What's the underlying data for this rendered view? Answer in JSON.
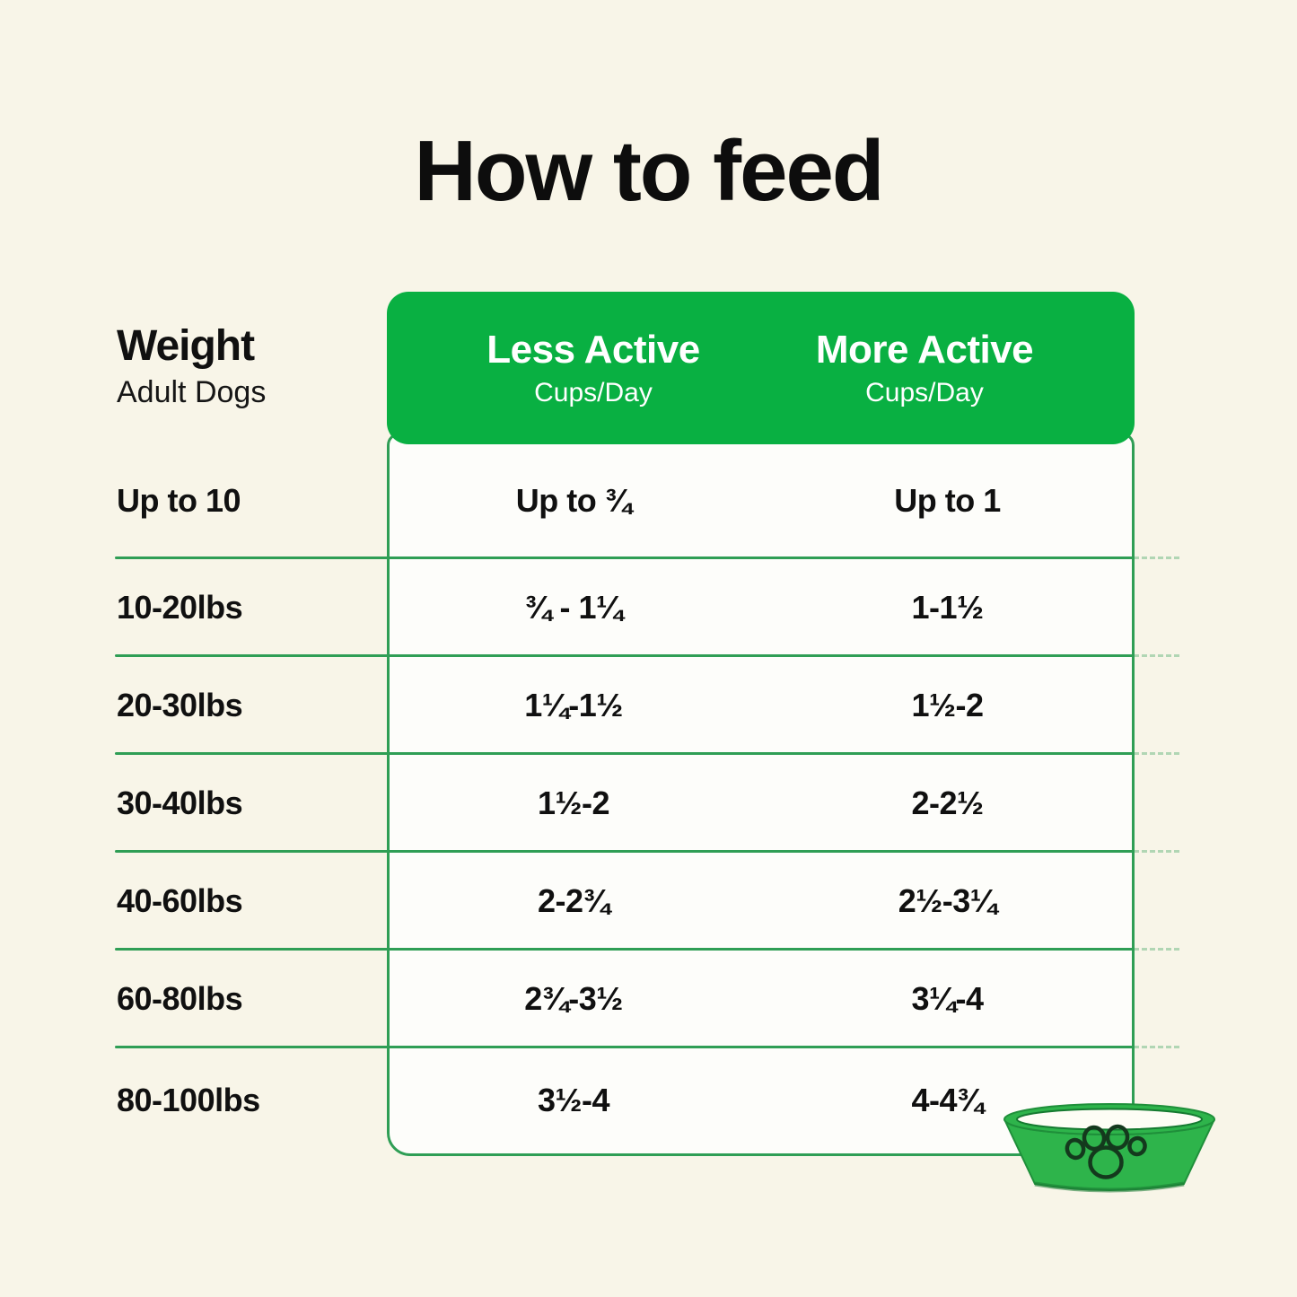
{
  "title": "How to feed",
  "colors": {
    "background": "#f8f5e8",
    "header_green": "#09b042",
    "line_green": "#2f9e55",
    "bowl_green": "#2eb44b",
    "paw_outline": "#14391d",
    "text": "#101010",
    "header_text": "#ffffff",
    "table_bg": "#fdfdfa"
  },
  "weight_header": {
    "label": "Weight",
    "sublabel": "Adult Dogs"
  },
  "columns": {
    "less_active": {
      "label": "Less Active",
      "sublabel": "Cups/Day"
    },
    "more_active": {
      "label": "More Active",
      "sublabel": "Cups/Day"
    }
  },
  "chart_data": {
    "type": "table",
    "title": "How to feed",
    "column_headers": [
      "Weight (Adult Dogs)",
      "Less Active Cups/Day",
      "More Active Cups/Day"
    ],
    "rows": [
      {
        "weight": "Up to 10",
        "less_active": "Up to ¾",
        "more_active": "Up to 1"
      },
      {
        "weight": "10-20lbs",
        "less_active": "¾ - 1¼",
        "more_active": "1-1½"
      },
      {
        "weight": "20-30lbs",
        "less_active": "1¼-1½",
        "more_active": "1½-2"
      },
      {
        "weight": "30-40lbs",
        "less_active": "1½-2",
        "more_active": "2-2½"
      },
      {
        "weight": "40-60lbs",
        "less_active": "2-2¾",
        "more_active": "2½-3¼"
      },
      {
        "weight": "60-80lbs",
        "less_active": "2¾-3½",
        "more_active": "3¼-4"
      },
      {
        "weight": "80-100lbs",
        "less_active": "3½-4",
        "more_active": "4-4¾"
      }
    ]
  },
  "icons": {
    "bowl": "dog-bowl-with-paw-print"
  }
}
